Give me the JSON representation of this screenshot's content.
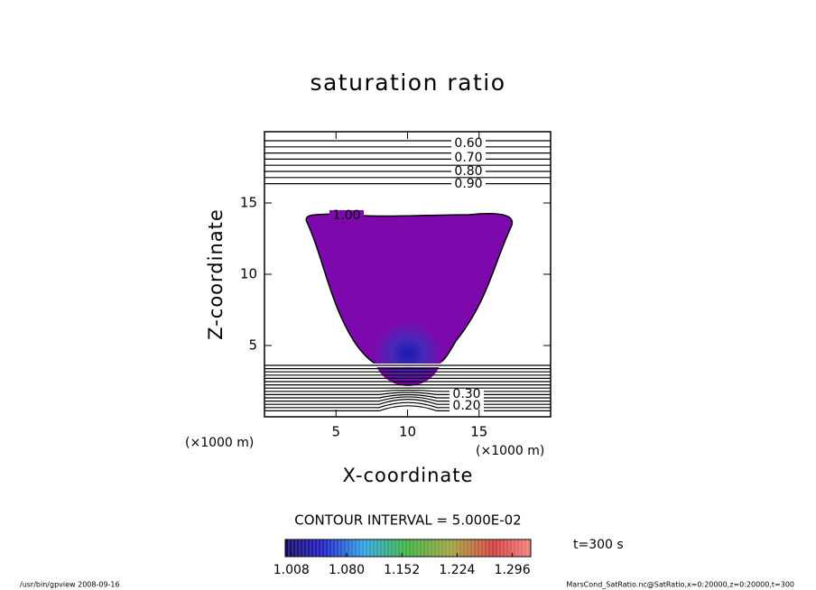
{
  "chart_data": {
    "type": "contour",
    "title": "saturation ratio",
    "x_label": "X-coordinate",
    "y_label": "Z-coordinate",
    "x_unit": "(×1000 m)",
    "y_unit": "(×1000 m)",
    "xlim": [
      0,
      20
    ],
    "ylim": [
      0,
      20
    ],
    "xticks": [
      5,
      10,
      15
    ],
    "yticks": [
      5,
      10,
      15
    ],
    "contour_levels": [
      {
        "value": 0.6,
        "label": "0.60"
      },
      {
        "value": 0.7,
        "label": "0.70"
      },
      {
        "value": 0.8,
        "label": "0.80"
      },
      {
        "value": 0.9,
        "label": "0.90"
      },
      {
        "value": 1.0,
        "label": "1.00"
      },
      {
        "value": 0.3,
        "label": "0.30"
      },
      {
        "value": 0.2,
        "label": "0.20"
      }
    ],
    "contour_interval": "CONTOUR INTERVAL = 5.000E-02",
    "colorbar_lim": [
      1.0,
      1.32
    ],
    "colorbar_ticks": [
      {
        "value": 1.008,
        "label": "1.008"
      },
      {
        "value": 1.08,
        "label": "1.080"
      },
      {
        "value": 1.152,
        "label": "1.152"
      },
      {
        "value": 1.224,
        "label": "1.224"
      },
      {
        "value": 1.296,
        "label": "1.296"
      }
    ],
    "time": "t=300 s"
  },
  "footer": {
    "left": "/usr/bin/gpview   2008-09-16",
    "right": "MarsCond_SatRatio.nc@SatRatio,x=0:20000,z=0:20000,t=300"
  }
}
